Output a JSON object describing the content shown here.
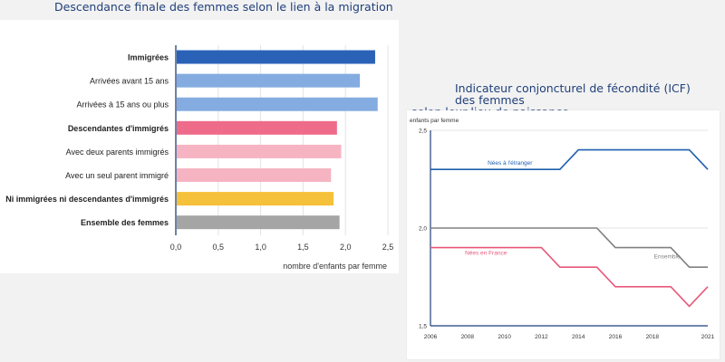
{
  "chart_data": [
    {
      "type": "bar",
      "orientation": "horizontal",
      "title": "Descendance finale des femmes selon le lien à la migration",
      "xlabel": "nombre d'enfants par femme",
      "ylabel": "",
      "xlim": [
        0,
        2.5
      ],
      "x_ticks": [
        "0,0",
        "0,5",
        "1,0",
        "1,5",
        "2,0",
        "2,5"
      ],
      "grid": true,
      "categories": [
        {
          "label": "Immigrées",
          "bold": true,
          "value": 2.35,
          "color": "#2a62b8"
        },
        {
          "label": "Arrivées avant 15 ans",
          "bold": false,
          "value": 2.17,
          "color": "#84ace0"
        },
        {
          "label": "Arrivées à 15 ans ou plus",
          "bold": false,
          "value": 2.38,
          "color": "#84ace0"
        },
        {
          "label": "Descendantes d'immigrés",
          "bold": true,
          "value": 1.9,
          "color": "#ee6b8a"
        },
        {
          "label": "Avec deux parents immigrés",
          "bold": false,
          "value": 1.95,
          "color": "#f6b4c2"
        },
        {
          "label": "Avec un seul parent immigré",
          "bold": false,
          "value": 1.83,
          "color": "#f6b4c2"
        },
        {
          "label": "Ni immigrées ni descendantes d'immigrés",
          "bold": true,
          "value": 1.86,
          "color": "#f5c13a"
        },
        {
          "label": "Ensemble des femmes",
          "bold": true,
          "value": 1.93,
          "color": "#a5a5a5"
        }
      ]
    },
    {
      "type": "line",
      "title_line1": "Indicateur conjoncturel de fécondité (ICF) des femmes",
      "title_line2": "selon leur lieu de naissance",
      "ylabel": "enfants par femme",
      "xlabel": "",
      "xlim": [
        2006,
        2021
      ],
      "ylim": [
        1.5,
        2.5
      ],
      "x_ticks": [
        "2006",
        "2008",
        "2010",
        "2012",
        "2014",
        "2016",
        "2018",
        "2021"
      ],
      "y_ticks": [
        {
          "v": 2.5,
          "label": "2,5"
        },
        {
          "v": 2.0,
          "label": "2,0"
        },
        {
          "v": 1.5,
          "label": "1,5"
        }
      ],
      "series": [
        {
          "name": "Nées à l'étranger",
          "color": "#1f5fb0",
          "x": [
            2006,
            2007,
            2008,
            2009,
            2010,
            2011,
            2012,
            2013,
            2014,
            2015,
            2016,
            2017,
            2018,
            2019,
            2020,
            2021
          ],
          "y": [
            2.3,
            2.3,
            2.3,
            2.3,
            2.3,
            2.3,
            2.3,
            2.3,
            2.4,
            2.4,
            2.4,
            2.4,
            2.4,
            2.4,
            2.4,
            2.3
          ]
        },
        {
          "name": "Ensemble",
          "color": "#808080",
          "x": [
            2006,
            2007,
            2008,
            2009,
            2010,
            2011,
            2012,
            2013,
            2014,
            2015,
            2016,
            2017,
            2018,
            2019,
            2020,
            2021
          ],
          "y": [
            2.0,
            2.0,
            2.0,
            2.0,
            2.0,
            2.0,
            2.0,
            2.0,
            2.0,
            2.0,
            1.9,
            1.9,
            1.9,
            1.9,
            1.8,
            1.8
          ]
        },
        {
          "name": "Nées en France",
          "color": "#e8587a",
          "x": [
            2006,
            2007,
            2008,
            2009,
            2010,
            2011,
            2012,
            2013,
            2014,
            2015,
            2016,
            2017,
            2018,
            2019,
            2020,
            2021
          ],
          "y": [
            1.9,
            1.9,
            1.9,
            1.9,
            1.9,
            1.9,
            1.9,
            1.8,
            1.8,
            1.8,
            1.7,
            1.7,
            1.7,
            1.7,
            1.6,
            1.7
          ]
        }
      ]
    }
  ]
}
